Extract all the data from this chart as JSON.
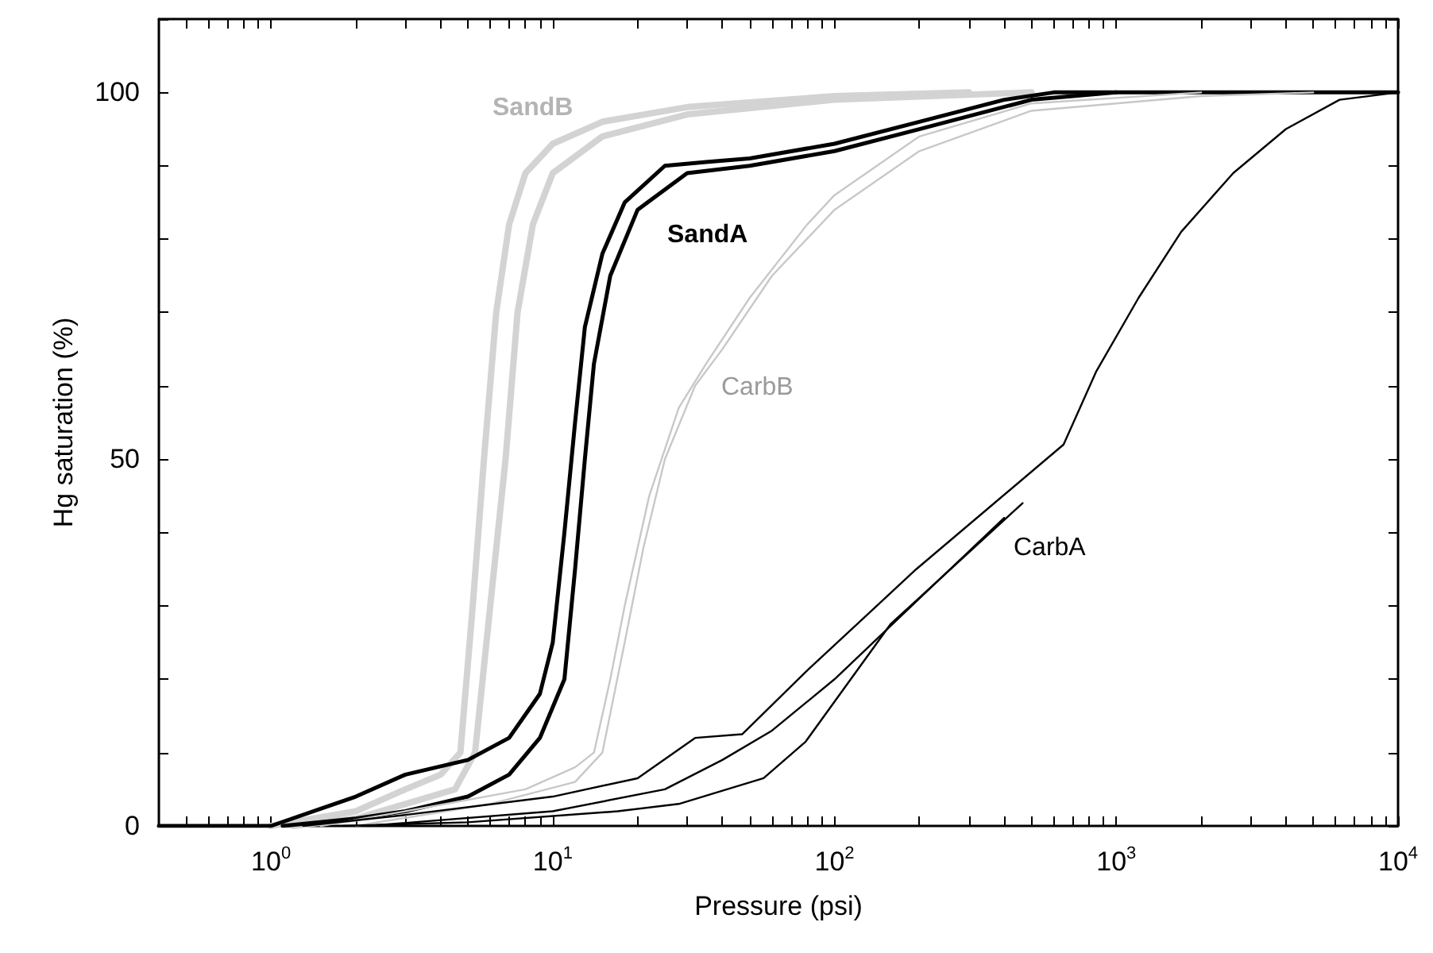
{
  "chart_data": {
    "type": "line",
    "xlabel": "Pressure (psi)",
    "ylabel": "Hg saturation (%)",
    "log": "x",
    "grid": false,
    "marker": "none",
    "line_style": "solid",
    "xlim": [
      0.4,
      10000
    ],
    "ylim": [
      0,
      110
    ],
    "xticks": [
      {
        "value": 0.5,
        "label": null
      },
      {
        "value": 0.6,
        "label": null
      },
      {
        "value": 0.7,
        "label": null
      },
      {
        "value": 0.8,
        "label": null
      },
      {
        "value": 0.9,
        "label": null
      },
      {
        "value": 1,
        "label": "10$^{0}$"
      },
      {
        "value": 2,
        "label": null
      },
      {
        "value": 3,
        "label": null
      },
      {
        "value": 4,
        "label": null
      },
      {
        "value": 5,
        "label": null
      },
      {
        "value": 6,
        "label": null
      },
      {
        "value": 7,
        "label": null
      },
      {
        "value": 8,
        "label": null
      },
      {
        "value": 9,
        "label": null
      },
      {
        "value": 10,
        "label": "10$^{1}$"
      },
      {
        "value": 20,
        "label": null
      },
      {
        "value": 30,
        "label": null
      },
      {
        "value": 40,
        "label": null
      },
      {
        "value": 50,
        "label": null
      },
      {
        "value": 60,
        "label": null
      },
      {
        "value": 70,
        "label": null
      },
      {
        "value": 80,
        "label": null
      },
      {
        "value": 90,
        "label": null
      },
      {
        "value": 100,
        "label": "10$^{2}$"
      },
      {
        "value": 200,
        "label": null
      },
      {
        "value": 300,
        "label": null
      },
      {
        "value": 400,
        "label": null
      },
      {
        "value": 500,
        "label": null
      },
      {
        "value": 600,
        "label": null
      },
      {
        "value": 700,
        "label": null
      },
      {
        "value": 800,
        "label": null
      },
      {
        "value": 900,
        "label": null
      },
      {
        "value": 1000,
        "label": "10$^{3}$"
      },
      {
        "value": 2000,
        "label": null
      },
      {
        "value": 3000,
        "label": null
      },
      {
        "value": 4000,
        "label": null
      },
      {
        "value": 5000,
        "label": null
      },
      {
        "value": 6000,
        "label": null
      },
      {
        "value": 7000,
        "label": null
      },
      {
        "value": 8000,
        "label": null
      },
      {
        "value": 9000,
        "label": null
      },
      {
        "value": 10000,
        "label": "10$^{4}$"
      }
    ],
    "yticks": [
      0,
      {
        "value": 10,
        "label": null
      },
      {
        "value": 20,
        "label": null
      },
      {
        "value": 30,
        "label": null
      },
      {
        "value": 40,
        "label": null
      },
      50,
      {
        "value": 60,
        "label": null
      },
      {
        "value": 70,
        "label": null
      },
      {
        "value": 80,
        "label": null
      },
      {
        "value": 90,
        "label": null
      },
      100,
      {
        "value": 110,
        "label": null
      }
    ],
    "annotations": [
      "SandB",
      "SandA",
      "CarbB",
      "CarbA"
    ],
    "series": [
      {
        "color": "#d3d3d3",
        "x": [
          1,
          2,
          3,
          4,
          4.7,
          5.2,
          5.7,
          6.3,
          7,
          8,
          10,
          15,
          30,
          100,
          300
        ],
        "values": [
          0,
          2,
          5,
          7,
          10,
          30,
          50,
          70,
          82,
          89,
          93,
          96,
          98,
          99.5,
          100
        ]
      },
      {
        "color": "#d3d3d3",
        "x": [
          1.2,
          2,
          3,
          4.5,
          5.3,
          6,
          6.8,
          7.5,
          8.5,
          10,
          15,
          30,
          100,
          500
        ],
        "values": [
          0,
          1,
          3,
          5,
          10,
          30,
          50,
          70,
          82,
          89,
          94,
          97,
          99,
          100
        ]
      },
      {
        "color": "#000000",
        "x": [
          0.4,
          1,
          2,
          3,
          5,
          7,
          9,
          10,
          11,
          12,
          13,
          15,
          18,
          25,
          35,
          50,
          100,
          200,
          400,
          600,
          10000
        ],
        "values": [
          0,
          0,
          4,
          7,
          9,
          12,
          18,
          25,
          40,
          55,
          68,
          78,
          85,
          90,
          90.5,
          91,
          93,
          96,
          99,
          100,
          100
        ]
      },
      {
        "color": "#000000",
        "x": [
          1.1,
          2,
          3,
          5,
          7,
          9,
          11,
          12,
          13,
          14,
          16,
          20,
          30,
          50,
          100,
          200,
          500,
          1000
        ],
        "values": [
          0,
          1,
          2,
          4,
          7,
          12,
          20,
          35,
          50,
          63,
          75,
          84,
          89,
          90,
          92,
          95,
          99,
          100
        ]
      },
      {
        "color": "#c8c8c8",
        "x": [
          1.5,
          3,
          8,
          12,
          14,
          16,
          18,
          22,
          28,
          35,
          50,
          80,
          100,
          200,
          500,
          2000
        ],
        "values": [
          0,
          2,
          5,
          8,
          10,
          20,
          30,
          45,
          57,
          63,
          72,
          82,
          86,
          94,
          98.5,
          100
        ]
      },
      {
        "color": "#c8c8c8",
        "x": [
          2,
          6,
          12,
          15,
          18,
          21,
          25,
          32,
          40,
          60,
          100,
          200,
          500,
          2000,
          5000
        ],
        "values": [
          0,
          3,
          6,
          10,
          25,
          38,
          50,
          60,
          65,
          75,
          84,
          92,
          97.5,
          99.5,
          100
        ]
      },
      {
        "color": "#000000",
        "x": [
          1.3,
          3,
          10,
          20,
          32,
          47,
          79,
          195,
          650,
          850,
          1200,
          1700,
          2600,
          4000,
          6200,
          10000
        ],
        "values": [
          0,
          1.5,
          4,
          6.5,
          12,
          12.5,
          21,
          35,
          52,
          62,
          72,
          81,
          89,
          95,
          99,
          100
        ]
      },
      {
        "color": "#000000",
        "x": [
          2.2,
          10,
          25,
          40,
          60,
          100,
          200,
          400
        ],
        "values": [
          0,
          2,
          5,
          9,
          13,
          20,
          31,
          42
        ]
      },
      {
        "color": "#000000",
        "x": [
          1.8,
          5,
          17,
          28,
          56,
          79,
          158,
          465
        ],
        "values": [
          0,
          0.5,
          2,
          3,
          6.5,
          11.5,
          27.5,
          44
        ]
      }
    ]
  }
}
